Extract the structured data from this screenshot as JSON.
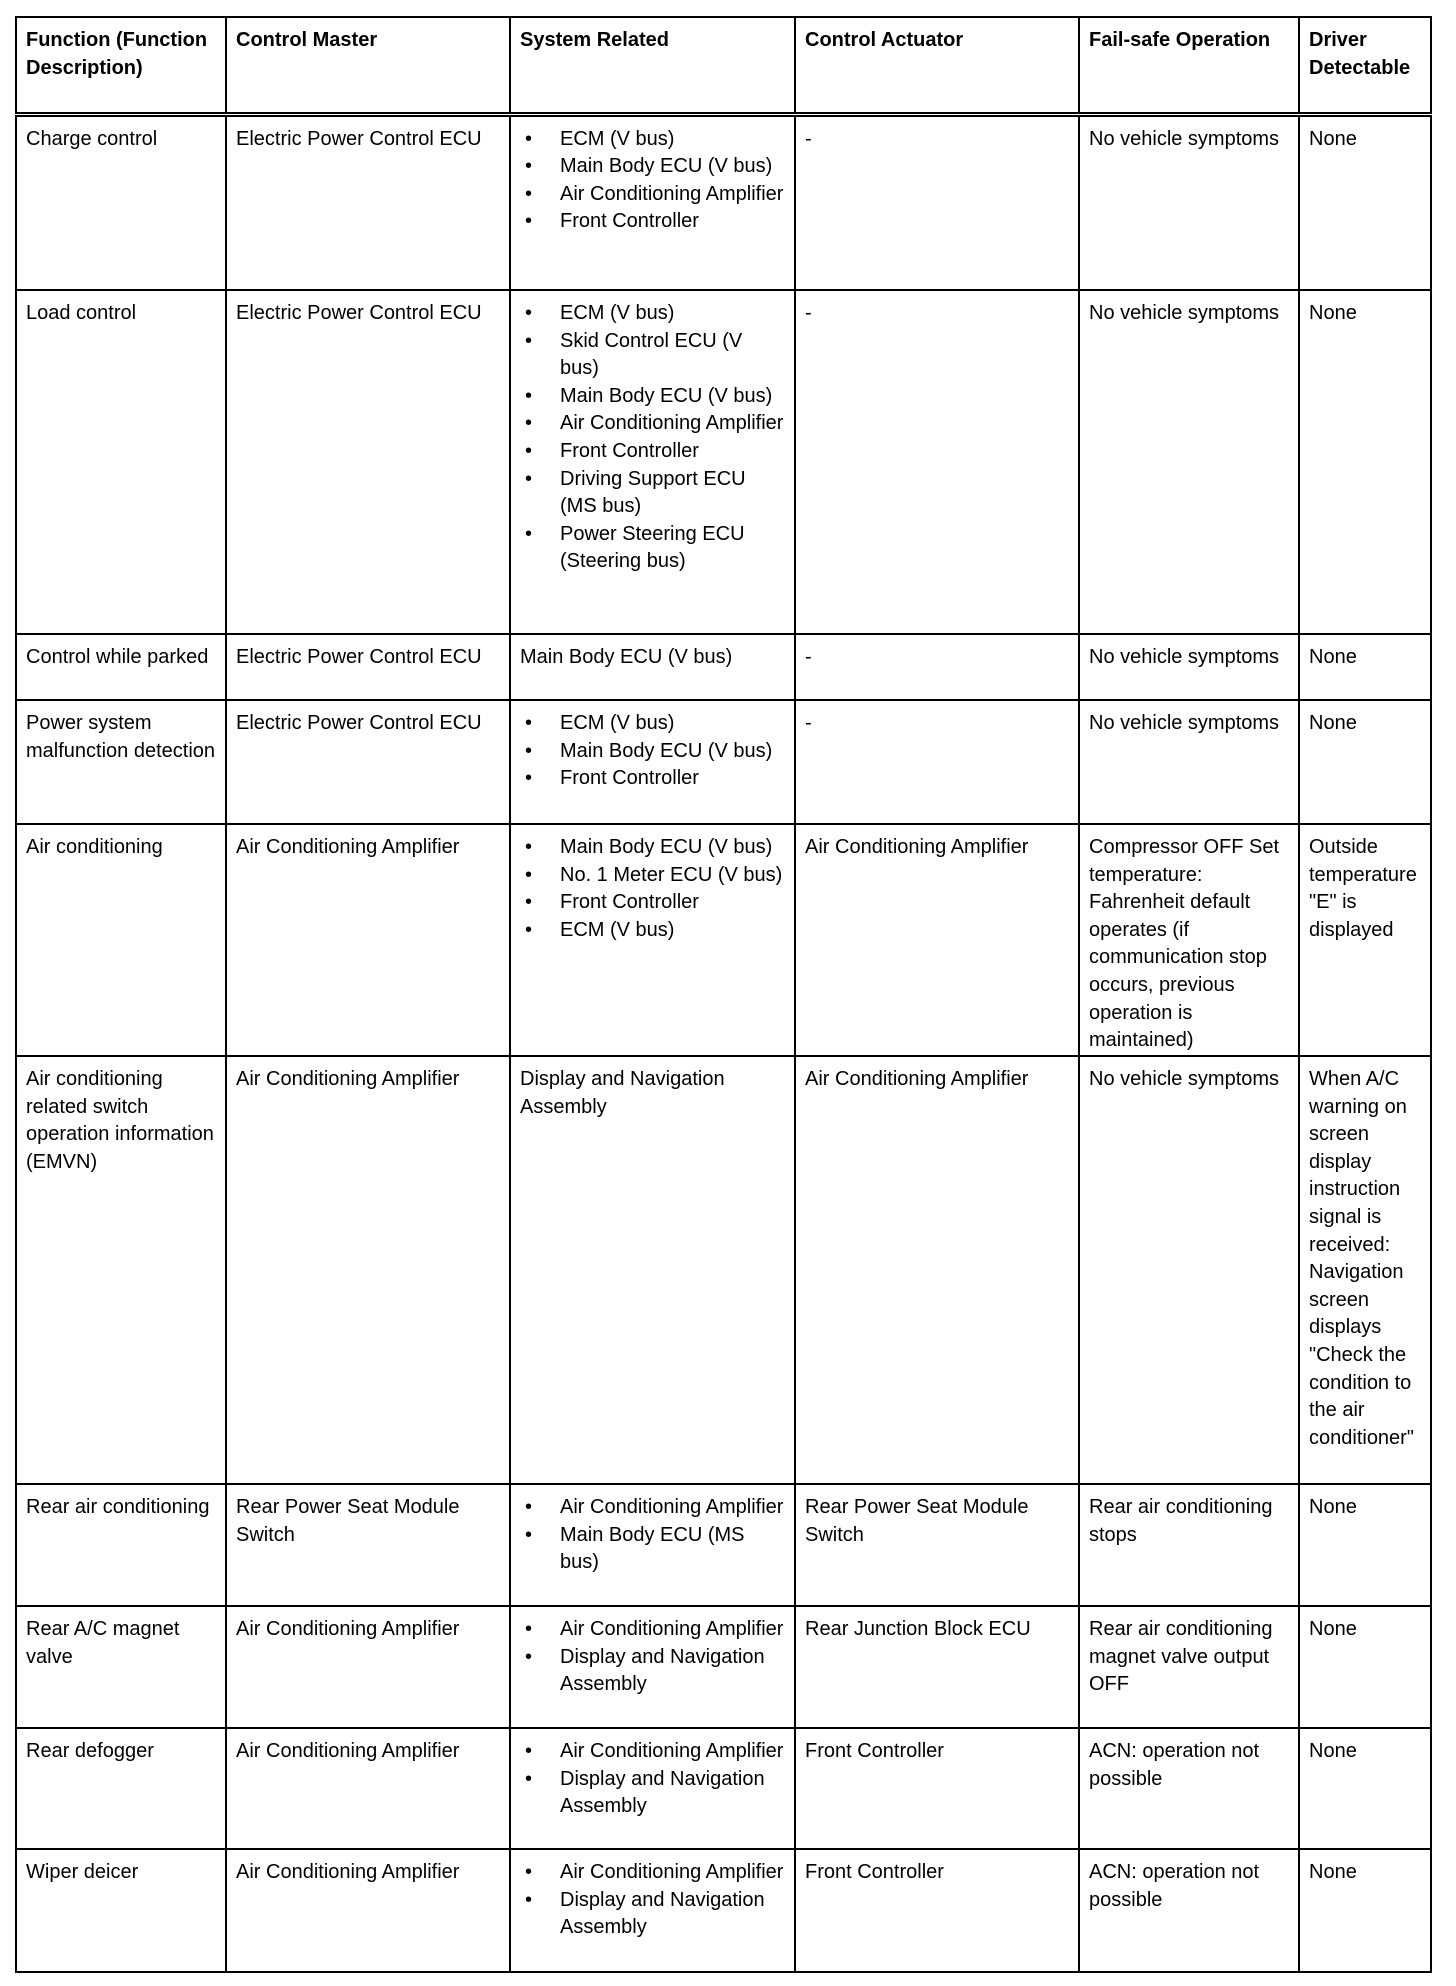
{
  "headers": [
    "Function (Function Description)",
    "Control Master",
    "System Related",
    "Control Actuator",
    "Fail-safe Operation",
    "Driver Detectable"
  ],
  "rows": [
    {
      "function": "Charge control",
      "master": "Electric Power Control ECU",
      "system": [
        "ECM (V bus)",
        "Main Body ECU (V bus)",
        "Air Conditioning Amplifier",
        "Front Controller"
      ],
      "actuator": "-",
      "failsafe": "No vehicle symptoms",
      "driver": "None"
    },
    {
      "function": "Load control",
      "master": "Electric Power Control ECU",
      "system": [
        "ECM (V bus)",
        "Skid Control ECU (V bus)",
        "Main Body ECU (V bus)",
        "Air Conditioning Amplifier",
        "Front Controller",
        "Driving Support ECU (MS bus)",
        "Power Steering ECU (Steering bus)"
      ],
      "actuator": "-",
      "failsafe": "No vehicle symptoms",
      "driver": "None"
    },
    {
      "function": "Control while parked",
      "master": "Electric Power Control ECU",
      "system": "Main Body ECU (V bus)",
      "actuator": "-",
      "failsafe": "No vehicle symptoms",
      "driver": "None"
    },
    {
      "function": "Power system malfunction detection",
      "master": "Electric Power Control ECU",
      "system": [
        "ECM (V bus)",
        "Main Body ECU (V bus)",
        "Front Controller"
      ],
      "actuator": "-",
      "failsafe": "No vehicle symptoms",
      "driver": "None"
    },
    {
      "function": "Air conditioning",
      "master": "Air Conditioning Amplifier",
      "system": [
        "Main Body ECU (V bus)",
        "No. 1 Meter ECU (V bus)",
        "Front Controller",
        "ECM (V bus)"
      ],
      "actuator": "Air Conditioning Amplifier",
      "failsafe": "Compressor OFF Set temperature: Fahrenheit default operates (if communication stop occurs, previous operation is maintained)",
      "driver": "Outside temperature \"E\" is displayed"
    },
    {
      "function": "Air conditioning related switch operation information (EMVN)",
      "master": "Air Conditioning Amplifier",
      "system": "Display and Navigation Assembly",
      "actuator": "Air Conditioning Amplifier",
      "failsafe": "No vehicle symptoms",
      "driver": "When A/C warning on screen display instruction signal is received: Navigation screen displays \"Check the condition to the air conditioner\""
    },
    {
      "function": "Rear air conditioning",
      "master": "Rear Power Seat Module Switch",
      "system": [
        "Air Conditioning Amplifier",
        "Main Body ECU (MS bus)"
      ],
      "actuator": "Rear Power Seat Module Switch",
      "failsafe": "Rear air conditioning stops",
      "driver": "None"
    },
    {
      "function": "Rear A/C magnet valve",
      "master": "Air Conditioning Amplifier",
      "system": [
        "Air Conditioning Amplifier",
        "Display and Navigation Assembly"
      ],
      "actuator": "Rear Junction Block ECU",
      "failsafe": "Rear air conditioning magnet valve output OFF",
      "driver": "None"
    },
    {
      "function": "Rear defogger",
      "master": "Air Conditioning Amplifier",
      "system": [
        "Air Conditioning Amplifier",
        "Display and Navigation Assembly"
      ],
      "actuator": "Front Controller",
      "failsafe": "ACN: operation not possible",
      "driver": "None"
    },
    {
      "function": "Wiper deicer",
      "master": "Air Conditioning Amplifier",
      "system": [
        "Air Conditioning Amplifier",
        "Display and Navigation Assembly"
      ],
      "actuator": "Front Controller",
      "failsafe": "ACN: operation not possible",
      "driver": "None"
    }
  ]
}
